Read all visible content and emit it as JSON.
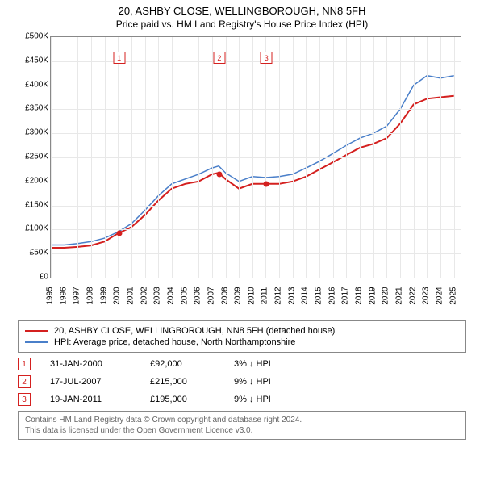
{
  "title": "20, ASHBY CLOSE, WELLINGBOROUGH, NN8 5FH",
  "subtitle": "Price paid vs. HM Land Registry's House Price Index (HPI)",
  "chart": {
    "type": "line",
    "background_color": "#ffffff",
    "grid_color": "#e8e8e8",
    "border_color": "#888888",
    "x_years": [
      1995,
      1996,
      1997,
      1998,
      1999,
      2000,
      2001,
      2002,
      2003,
      2004,
      2005,
      2006,
      2007,
      2008,
      2009,
      2010,
      2011,
      2012,
      2013,
      2014,
      2015,
      2016,
      2017,
      2018,
      2019,
      2020,
      2021,
      2022,
      2023,
      2024,
      2025
    ],
    "xlim": [
      1995,
      2025.5
    ],
    "ylim": [
      0,
      500000
    ],
    "ytick_step": 50000,
    "yticks": [
      "£0",
      "£50K",
      "£100K",
      "£150K",
      "£200K",
      "£250K",
      "£300K",
      "£350K",
      "£400K",
      "£450K",
      "£500K"
    ],
    "label_fontsize": 10,
    "series": [
      {
        "name": "20, ASHBY CLOSE, WELLINGBOROUGH, NN8 5FH (detached house)",
        "color": "#d4201f",
        "line_width": 2,
        "data": [
          [
            1995,
            62000
          ],
          [
            1996,
            62000
          ],
          [
            1997,
            64000
          ],
          [
            1998,
            67000
          ],
          [
            1999,
            75000
          ],
          [
            2000,
            92000
          ],
          [
            2001,
            105000
          ],
          [
            2002,
            130000
          ],
          [
            2003,
            160000
          ],
          [
            2004,
            185000
          ],
          [
            2005,
            195000
          ],
          [
            2006,
            200000
          ],
          [
            2007,
            215000
          ],
          [
            2007.5,
            218000
          ],
          [
            2008,
            205000
          ],
          [
            2009,
            185000
          ],
          [
            2010,
            195000
          ],
          [
            2011,
            195000
          ],
          [
            2012,
            195000
          ],
          [
            2013,
            200000
          ],
          [
            2014,
            210000
          ],
          [
            2015,
            225000
          ],
          [
            2016,
            240000
          ],
          [
            2017,
            255000
          ],
          [
            2018,
            270000
          ],
          [
            2019,
            278000
          ],
          [
            2020,
            290000
          ],
          [
            2021,
            320000
          ],
          [
            2022,
            360000
          ],
          [
            2023,
            372000
          ],
          [
            2024,
            375000
          ],
          [
            2025,
            378000
          ]
        ]
      },
      {
        "name": "HPI: Average price, detached house, North Northamptonshire",
        "color": "#4a7fc9",
        "line_width": 1.5,
        "data": [
          [
            1995,
            68000
          ],
          [
            1996,
            68000
          ],
          [
            1997,
            71000
          ],
          [
            1998,
            75000
          ],
          [
            1999,
            82000
          ],
          [
            2000,
            95000
          ],
          [
            2001,
            112000
          ],
          [
            2002,
            140000
          ],
          [
            2003,
            170000
          ],
          [
            2004,
            195000
          ],
          [
            2005,
            205000
          ],
          [
            2006,
            215000
          ],
          [
            2007,
            228000
          ],
          [
            2007.5,
            232000
          ],
          [
            2008,
            218000
          ],
          [
            2009,
            200000
          ],
          [
            2010,
            210000
          ],
          [
            2011,
            208000
          ],
          [
            2012,
            210000
          ],
          [
            2013,
            215000
          ],
          [
            2014,
            228000
          ],
          [
            2015,
            242000
          ],
          [
            2016,
            258000
          ],
          [
            2017,
            275000
          ],
          [
            2018,
            290000
          ],
          [
            2019,
            300000
          ],
          [
            2020,
            315000
          ],
          [
            2021,
            350000
          ],
          [
            2022,
            400000
          ],
          [
            2023,
            420000
          ],
          [
            2024,
            415000
          ],
          [
            2025,
            420000
          ]
        ]
      }
    ],
    "sale_points": [
      {
        "x": 2000.08,
        "y": 92000,
        "color": "#d4201f"
      },
      {
        "x": 2007.54,
        "y": 215000,
        "color": "#d4201f"
      },
      {
        "x": 2011.05,
        "y": 195000,
        "color": "#d4201f"
      }
    ],
    "marker_badges": [
      {
        "n": "1",
        "x": 2000.08,
        "color": "#d4201f"
      },
      {
        "n": "2",
        "x": 2007.54,
        "color": "#d4201f"
      },
      {
        "n": "3",
        "x": 2011.05,
        "color": "#d4201f"
      }
    ]
  },
  "legend": {
    "items": [
      {
        "label": "20, ASHBY CLOSE, WELLINGBOROUGH, NN8 5FH (detached house)",
        "color": "#d4201f"
      },
      {
        "label": "HPI: Average price, detached house, North Northamptonshire",
        "color": "#4a7fc9"
      }
    ]
  },
  "sales": [
    {
      "n": "1",
      "date": "31-JAN-2000",
      "price": "£92,000",
      "diff": "3% ↓ HPI",
      "color": "#d4201f"
    },
    {
      "n": "2",
      "date": "17-JUL-2007",
      "price": "£215,000",
      "diff": "9% ↓ HPI",
      "color": "#d4201f"
    },
    {
      "n": "3",
      "date": "19-JAN-2011",
      "price": "£195,000",
      "diff": "9% ↓ HPI",
      "color": "#d4201f"
    }
  ],
  "footer": {
    "line1": "Contains HM Land Registry data © Crown copyright and database right 2024.",
    "line2": "This data is licensed under the Open Government Licence v3.0."
  }
}
